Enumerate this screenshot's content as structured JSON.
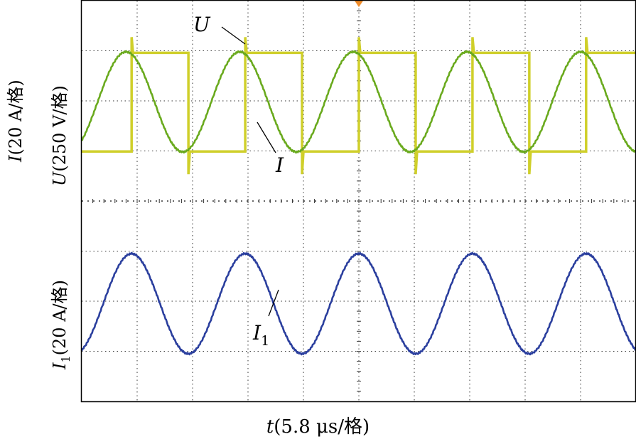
{
  "chart_data": {
    "type": "line",
    "title": "",
    "xlabel": {
      "var": "t",
      "unit": "(5.8 μs/格)"
    },
    "ylabels": {
      "current_top": {
        "var": "I",
        "unit": "(20 A/格)"
      },
      "voltage_top": {
        "var": "U",
        "unit": "(250 V/格)"
      },
      "current_bottom": {
        "var": "I",
        "sub": "1",
        "unit": "(20 A/格)"
      }
    },
    "divisions": {
      "x": 10,
      "y": 8
    },
    "x_div_range": [
      0,
      10
    ],
    "trigger_marker_div": 5.0,
    "series": [
      {
        "name": "U",
        "sub": "",
        "color": "#cfcf2a",
        "kind": "square",
        "period_div": 2.05,
        "rise_div": 0.9,
        "high_div": 2.96,
        "low_div": 0.99,
        "label_div": [
          2.15,
          2.96
        ]
      },
      {
        "name": "I",
        "sub": "",
        "color": "#6aaa1e",
        "kind": "sine",
        "period_div": 2.05,
        "peak_div": 0.8,
        "center_div": 1.98,
        "amplitude_div": 1.0,
        "label_div": [
          3.6,
          0.5
        ]
      },
      {
        "name": "I",
        "sub": "1",
        "color": "#2b3f9e",
        "kind": "sine",
        "period_div": 2.05,
        "peak_div": 0.9,
        "center_div": -2.05,
        "amplitude_div": 1.0,
        "label_div": [
          3.17,
          -3.35
        ]
      }
    ]
  }
}
